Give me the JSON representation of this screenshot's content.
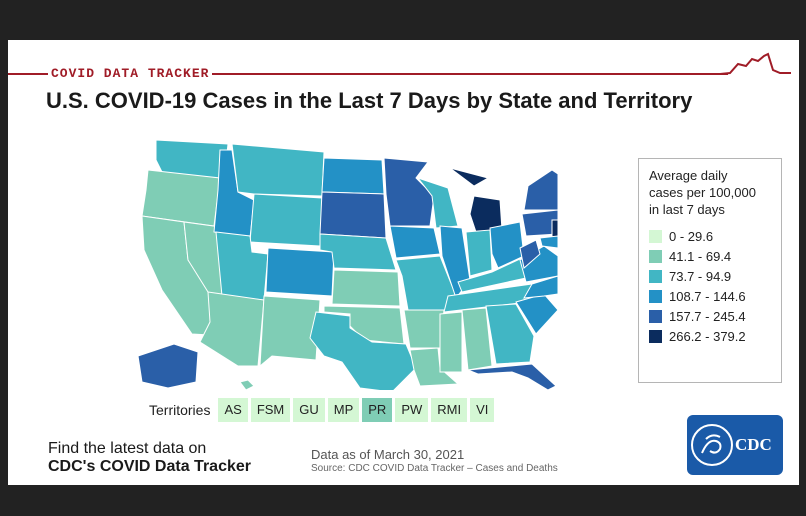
{
  "header": {
    "tracker_label": "COVID DATA TRACKER",
    "title": "U.S. COVID-19 Cases in the Last 7 Days by State and Territory"
  },
  "legend": {
    "title_lines": [
      "Average daily",
      "cases per 100,000",
      "in last 7 days"
    ],
    "items": [
      {
        "label": "0 - 29.6",
        "color": "#d4f7d4"
      },
      {
        "label": "41.1 - 69.4",
        "color": "#7fcdb5"
      },
      {
        "label": "73.7 - 94.9",
        "color": "#41b6c4"
      },
      {
        "label": "108.7 - 144.6",
        "color": "#2391c6"
      },
      {
        "label": "157.7 - 245.4",
        "color": "#2a5fa8"
      },
      {
        "label": "266.2 - 379.2",
        "color": "#0b2c5e"
      }
    ]
  },
  "territories": {
    "label": "Territories",
    "items": [
      {
        "name": "AS",
        "level": 0
      },
      {
        "name": "FSM",
        "level": 0
      },
      {
        "name": "GU",
        "level": 0
      },
      {
        "name": "MP",
        "level": 0
      },
      {
        "name": "PR",
        "level": 1
      },
      {
        "name": "PW",
        "level": 0
      },
      {
        "name": "RMI",
        "level": 0
      },
      {
        "name": "VI",
        "level": 0
      }
    ]
  },
  "footer": {
    "cta_line1": "Find the latest data on",
    "cta_line2": "CDC's COVID Data Tracker",
    "as_of": "Data as of March 30, 2021",
    "source": "Source: CDC COVID Data Tracker – Cases and Deaths",
    "logo_text": "CDC"
  },
  "map_data": {
    "states": {
      "WA": 2,
      "OR": 1,
      "CA": 1,
      "NV": 1,
      "ID": 3,
      "MT": 2,
      "WY": 2,
      "UT": 2,
      "AZ": 1,
      "CO": 3,
      "NM": 1,
      "ND": 3,
      "SD": 4,
      "NE": 2,
      "KS": 1,
      "OK": 1,
      "TX": 2,
      "MN": 4,
      "IA": 3,
      "MO": 2,
      "AR": 1,
      "LA": 1,
      "WI": 2,
      "IL": 3,
      "MI": 5,
      "IN": 2,
      "OH": 3,
      "KY": 2,
      "TN": 2,
      "MS": 1,
      "AL": 1,
      "GA": 2,
      "FL": 4,
      "SC": 3,
      "NC": 3,
      "VA": 3,
      "WV": 4,
      "PA": 4,
      "NY": 4,
      "VT": 3,
      "NH": 4,
      "ME": 3,
      "MA": 4,
      "RI": 4,
      "CT": 4,
      "NJ": 5,
      "DE": 4,
      "MD": 3,
      "AK": 4,
      "HI": 1
    }
  }
}
